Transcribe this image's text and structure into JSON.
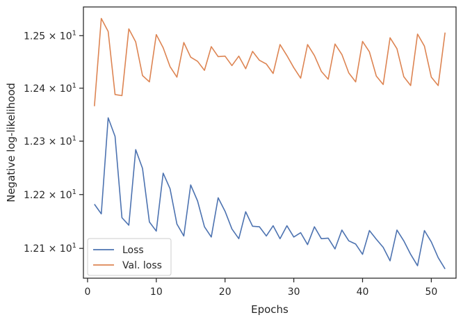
{
  "chart_data": {
    "type": "line",
    "title": "",
    "xlabel": "Epochs",
    "ylabel": "Negative log-likelihood",
    "xlim": [
      -0.6,
      53.6
    ],
    "ylim": [
      12.045,
      12.555
    ],
    "yscale": "log",
    "grid": false,
    "legend_position": "lower-left",
    "x_ticks": [
      {
        "value": 0,
        "label": "0"
      },
      {
        "value": 10,
        "label": "10"
      },
      {
        "value": 20,
        "label": "20"
      },
      {
        "value": 30,
        "label": "30"
      },
      {
        "value": 40,
        "label": "40"
      },
      {
        "value": 50,
        "label": "50"
      }
    ],
    "y_ticks": [
      {
        "value": 12.1,
        "mantissa": "1.21",
        "exponent": "1"
      },
      {
        "value": 12.2,
        "mantissa": "1.22",
        "exponent": "1"
      },
      {
        "value": 12.3,
        "mantissa": "1.23",
        "exponent": "1"
      },
      {
        "value": 12.4,
        "mantissa": "1.24",
        "exponent": "1"
      },
      {
        "value": 12.5,
        "mantissa": "1.25",
        "exponent": "1"
      }
    ],
    "x": [
      1,
      2,
      3,
      4,
      5,
      6,
      7,
      8,
      9,
      10,
      11,
      12,
      13,
      14,
      15,
      16,
      17,
      18,
      19,
      20,
      21,
      22,
      23,
      24,
      25,
      26,
      27,
      28,
      29,
      30,
      31,
      32,
      33,
      34,
      35,
      36,
      37,
      38,
      39,
      40,
      41,
      42,
      43,
      44,
      45,
      46,
      47,
      48,
      49,
      50,
      51,
      52
    ],
    "series": [
      {
        "name": "Loss",
        "color": "#4c72b0",
        "values": [
          12.182,
          12.164,
          12.344,
          12.309,
          12.157,
          12.143,
          12.284,
          12.249,
          12.149,
          12.132,
          12.24,
          12.211,
          12.145,
          12.123,
          12.218,
          12.188,
          12.14,
          12.121,
          12.194,
          12.169,
          12.136,
          12.118,
          12.168,
          12.141,
          12.14,
          12.123,
          12.142,
          12.118,
          12.142,
          12.121,
          12.129,
          12.107,
          12.14,
          12.118,
          12.119,
          12.099,
          12.134,
          12.114,
          12.108,
          12.089,
          12.133,
          12.117,
          12.102,
          12.077,
          12.134,
          12.114,
          12.089,
          12.068,
          12.133,
          12.112,
          12.083,
          12.062
        ]
      },
      {
        "name": "Val. loss",
        "color": "#dd8452",
        "values": [
          12.366,
          12.533,
          12.508,
          12.388,
          12.386,
          12.513,
          12.488,
          12.424,
          12.412,
          12.502,
          12.477,
          12.441,
          12.421,
          12.487,
          12.459,
          12.451,
          12.434,
          12.479,
          12.46,
          12.461,
          12.443,
          12.461,
          12.437,
          12.47,
          12.453,
          12.446,
          12.428,
          12.483,
          12.462,
          12.439,
          12.419,
          12.483,
          12.462,
          12.432,
          12.417,
          12.484,
          12.464,
          12.429,
          12.412,
          12.489,
          12.469,
          12.423,
          12.407,
          12.496,
          12.475,
          12.422,
          12.405,
          12.503,
          12.48,
          12.421,
          12.405,
          12.506
        ]
      }
    ]
  }
}
